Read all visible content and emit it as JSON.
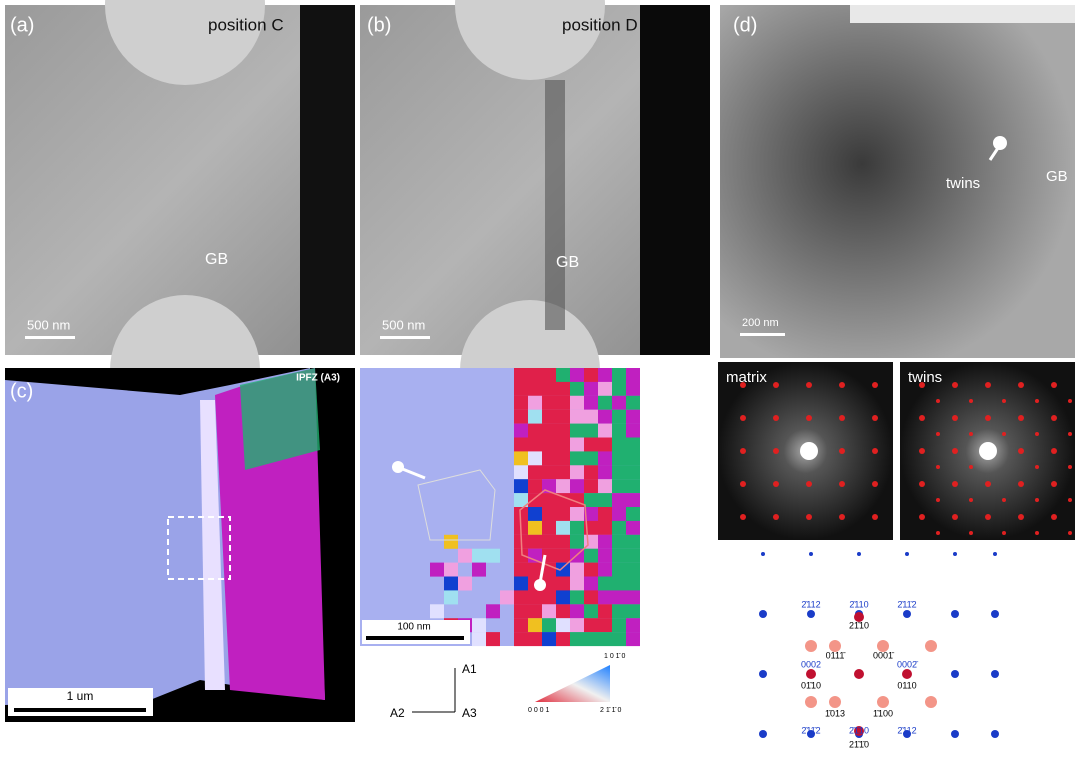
{
  "panel_a": {
    "label": "(a)",
    "position": "position C",
    "gb": "GB",
    "scale": "500 nm"
  },
  "panel_b": {
    "label": "(b)",
    "position": "position D",
    "gb": "GB",
    "scale": "500 nm"
  },
  "panel_d": {
    "label": "(d)",
    "twins": "twins",
    "gb": "GB",
    "scale": "200 nm"
  },
  "panel_c": {
    "label": "(c)",
    "map_title": "IPFZ (A3)",
    "scale": "1 um"
  },
  "ebsd_zoom": {
    "scale": "100 nm",
    "axes": [
      "A1",
      "A2",
      "A3"
    ],
    "key_labels": [
      "1 0 1̄ 0",
      "0 0 0 1",
      "2 1̄ 1̄ 0"
    ]
  },
  "diffraction": {
    "matrix": "matrix",
    "twins": "twins",
    "indices": [
      "2̄112",
      "2̄110",
      "2̄11̄2",
      "21̄10",
      "0111̄",
      "0001̄",
      "0002",
      "01̄10",
      "0002̄",
      "0110",
      "1̄013",
      "1̄100",
      "2̄11̄2",
      "2̄1̄10",
      "2̄112",
      "21̄1̄0"
    ]
  }
}
